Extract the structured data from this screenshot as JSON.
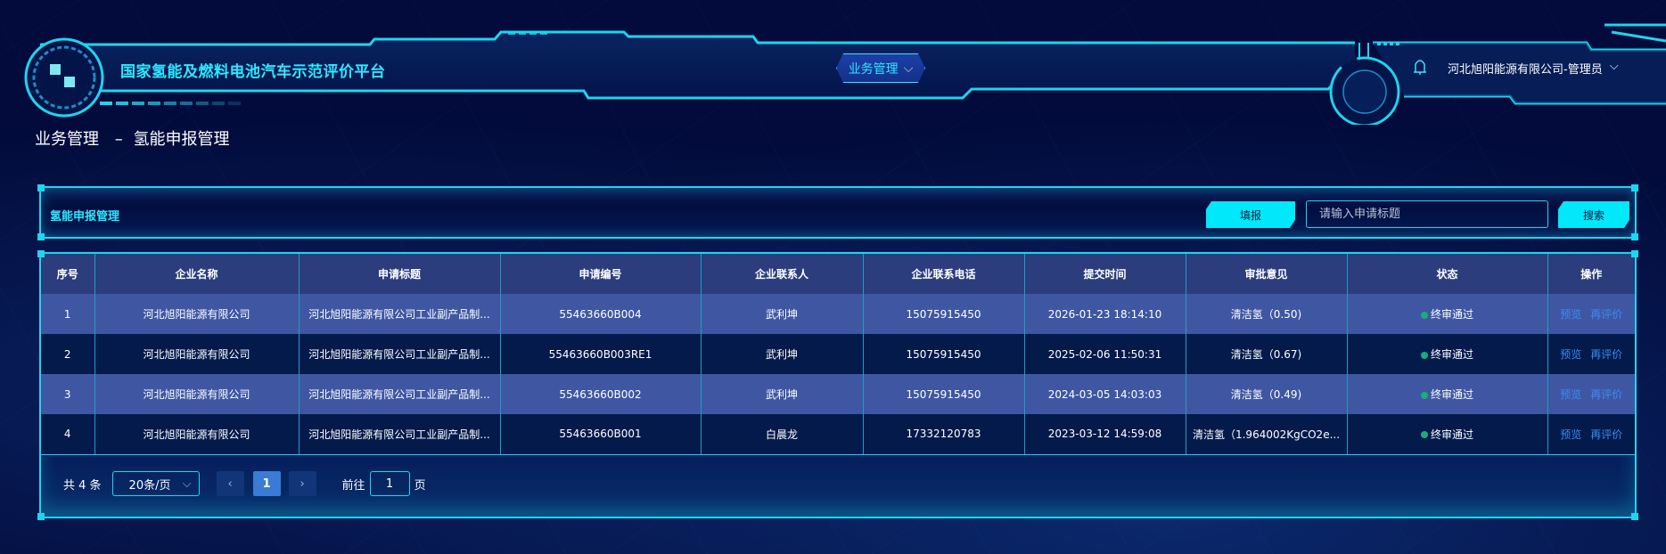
{
  "header": {
    "title": "国家氢能及燃料电池汽车示范评价平台",
    "nav_tab": "业务管理",
    "user": "河北旭阳能源有限公司-管理员",
    "icons": [
      "logo-icon",
      "bell-icon",
      "chevron-down-icon"
    ]
  },
  "breadcrumb": {
    "parent": "业务管理",
    "separator": "–",
    "current": "氢能申报管理"
  },
  "panel": {
    "title": "氢能申报管理",
    "fill_button": "填报",
    "search_placeholder": "请输入申请标题",
    "search_value": "",
    "search_button": "搜索"
  },
  "table": {
    "columns": [
      "序号",
      "企业名称",
      "申请标题",
      "申请编号",
      "企业联系人",
      "企业联系电话",
      "提交时间",
      "审批意见",
      "状态",
      "操作"
    ],
    "rows": [
      {
        "no": "1",
        "company": "河北旭阳能源有限公司",
        "title": "河北旭阳能源有限公司工业副产品制...",
        "code": "55463660B004",
        "contact": "武利坤",
        "phone": "15075915450",
        "time": "2026-01-23 18:14:10",
        "opinion": "清洁氢（0.50)",
        "status": "终审通过",
        "actions": [
          "预览",
          "再评价"
        ]
      },
      {
        "no": "2",
        "company": "河北旭阳能源有限公司",
        "title": "河北旭阳能源有限公司工业副产品制...",
        "code": "55463660B003RE1",
        "contact": "武利坤",
        "phone": "15075915450",
        "time": "2025-02-06 11:50:31",
        "opinion": "清洁氢（0.67)",
        "status": "终审通过",
        "actions": [
          "预览",
          "再评价"
        ]
      },
      {
        "no": "3",
        "company": "河北旭阳能源有限公司",
        "title": "河北旭阳能源有限公司工业副产品制...",
        "code": "55463660B002",
        "contact": "武利坤",
        "phone": "15075915450",
        "time": "2024-03-05 14:03:03",
        "opinion": "清洁氢（0.49)",
        "status": "终审通过",
        "actions": [
          "预览",
          "再评价"
        ]
      },
      {
        "no": "4",
        "company": "河北旭阳能源有限公司",
        "title": "河北旭阳能源有限公司工业副产品制...",
        "code": "55463660B001",
        "contact": "白晨龙",
        "phone": "17332120783",
        "time": "2023-03-12 14:59:08",
        "opinion": "清洁氢（1.964002KgCO2e...",
        "status": "终审通过",
        "actions": [
          "预览",
          "再评价"
        ]
      }
    ]
  },
  "pagination": {
    "total": "共 4 条",
    "page_size": "20条/页",
    "current_page": "1",
    "goto_label": "前往",
    "goto_value": "1",
    "page_suffix": "页"
  },
  "colors": {
    "accent": "#00e8fa",
    "background": "#020b3b",
    "header_row": "#2b3d7d",
    "row_odd": "#3f57a3",
    "row_even": "#031a4b",
    "link": "#3a8df0",
    "status_ok": "#13b07a"
  }
}
